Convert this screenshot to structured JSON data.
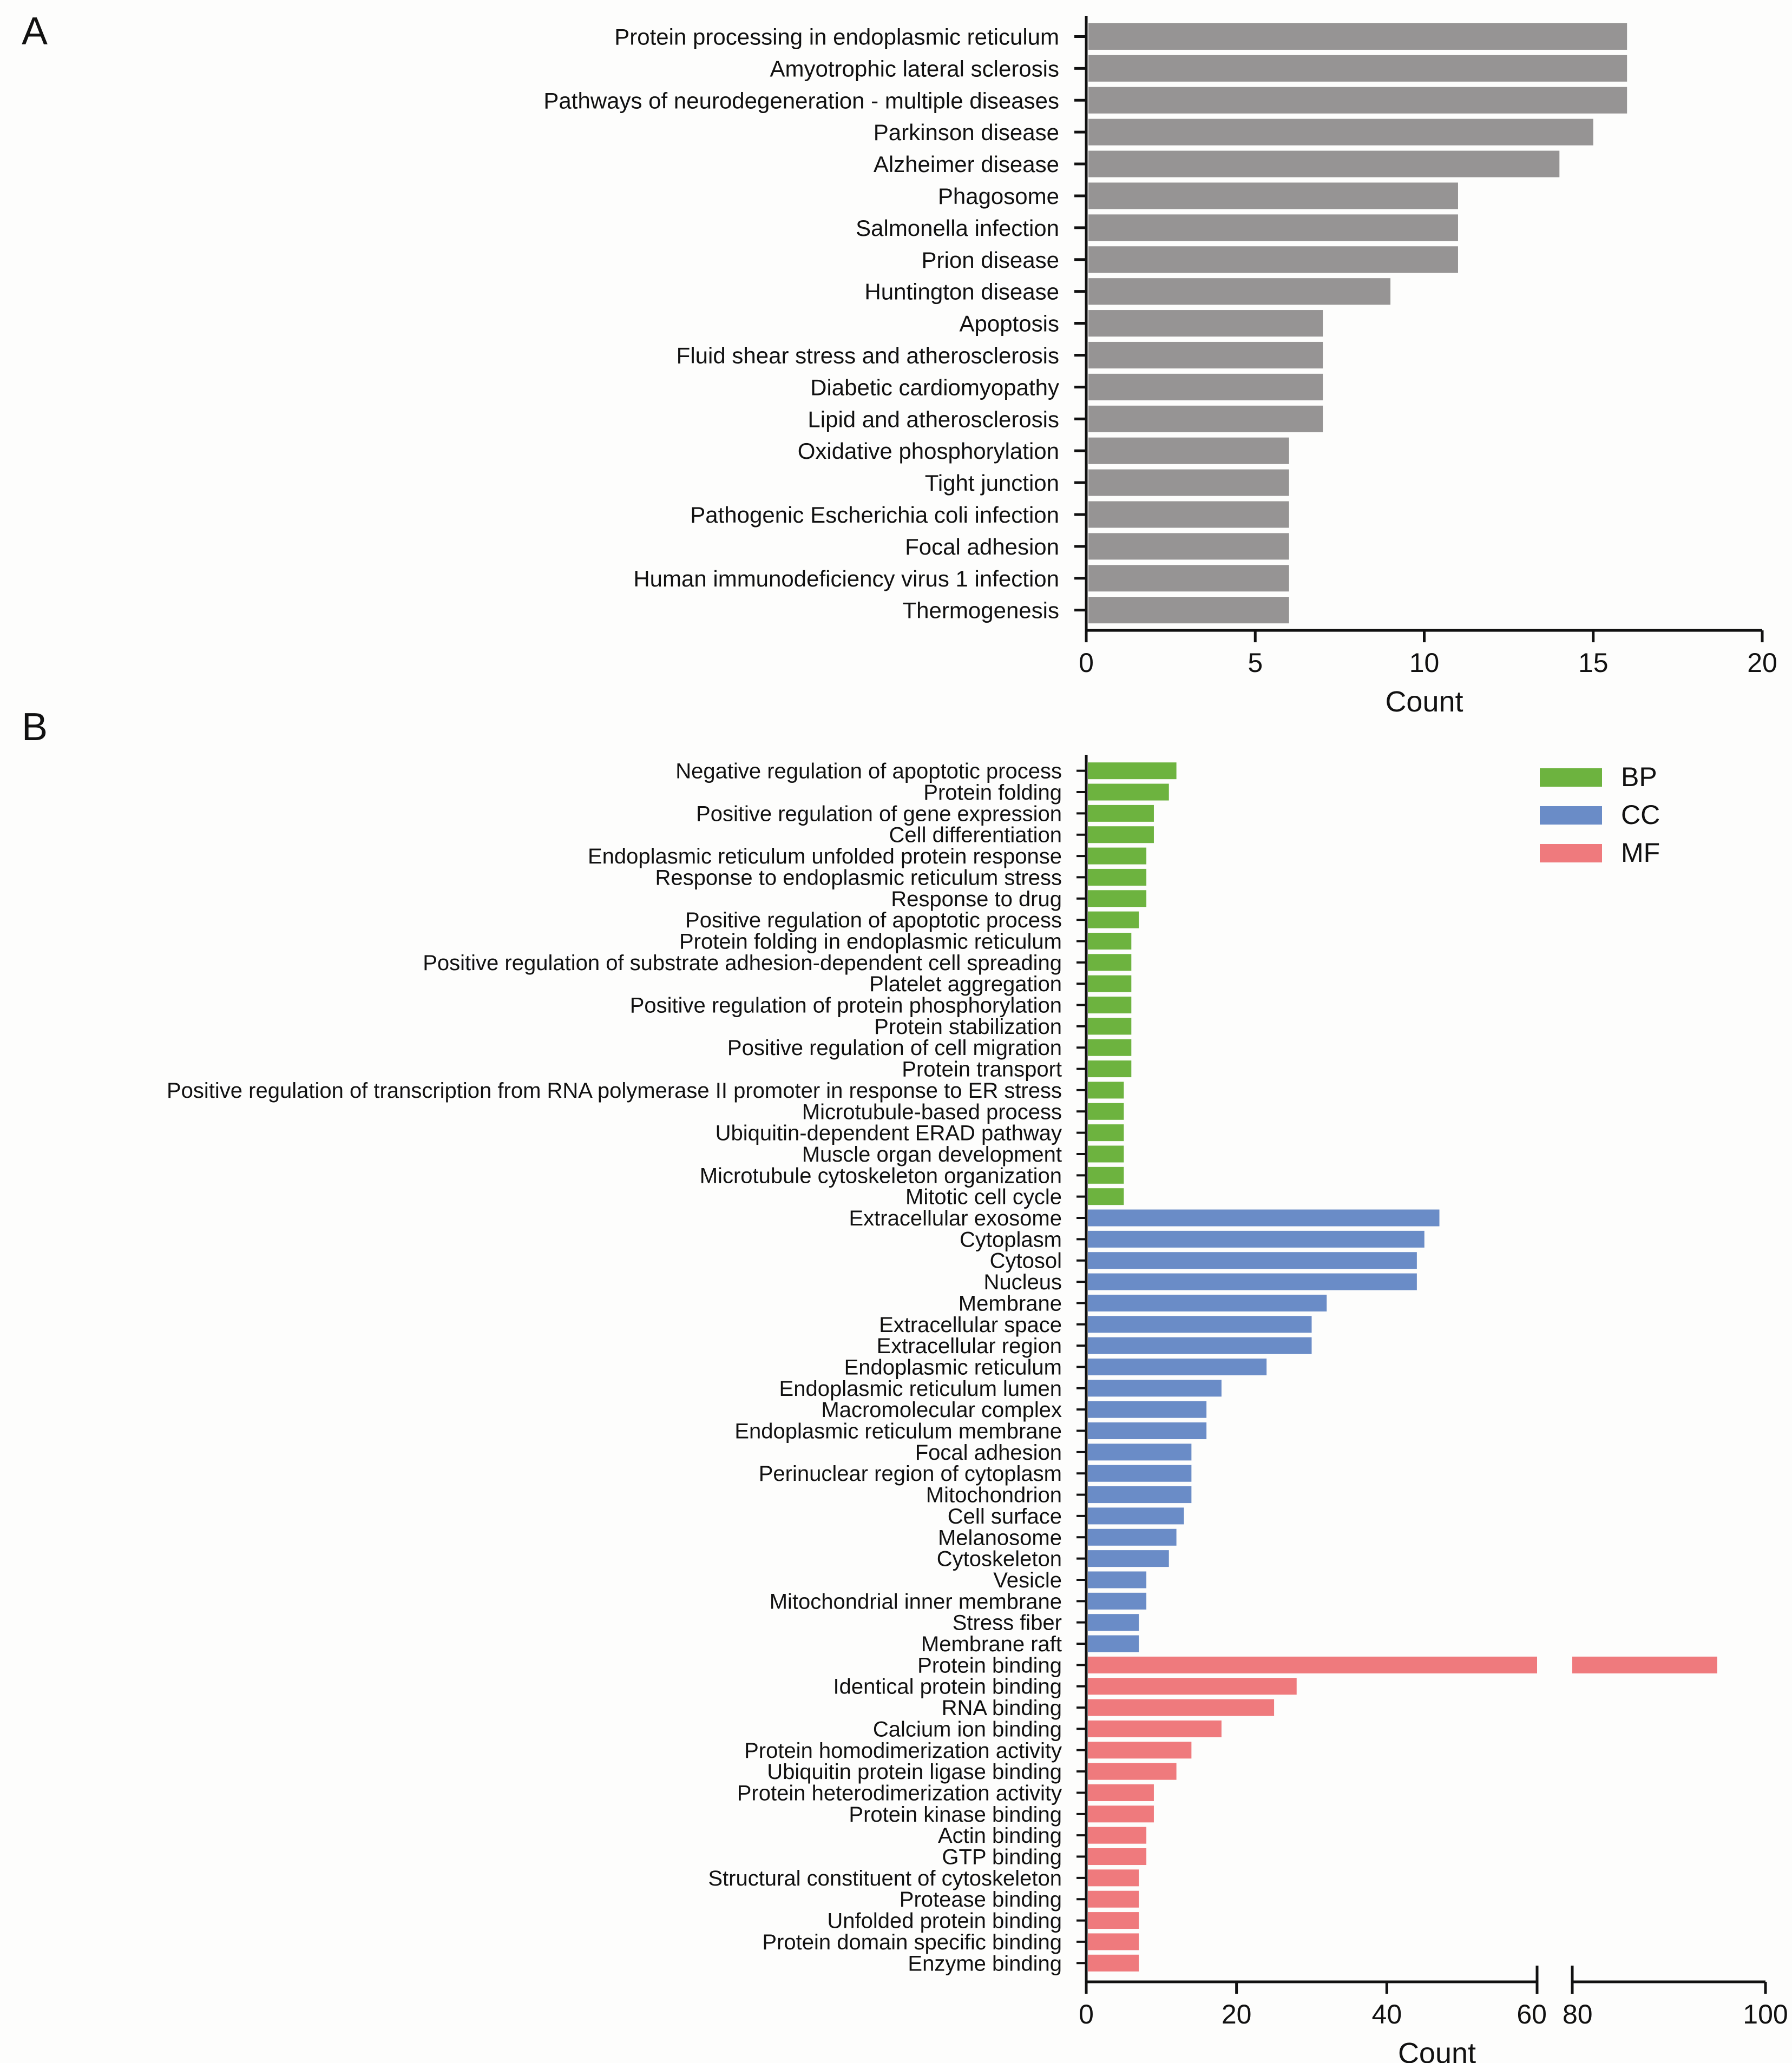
{
  "colors": {
    "bar_a": "#969494",
    "bp": "#6db33f",
    "cc": "#6a8cc7",
    "mf": "#ef7a7d",
    "axis": "#111111"
  },
  "chart_data": [
    {
      "panel": "A",
      "type": "bar",
      "orientation": "horizontal",
      "xlabel": "Count",
      "xlim": [
        0,
        20
      ],
      "xticks": [
        0,
        5,
        10,
        15,
        20
      ],
      "categories": [
        "Protein processing in endoplasmic reticulum",
        "Amyotrophic lateral sclerosis",
        "Pathways of neurodegeneration - multiple diseases",
        "Parkinson disease",
        "Alzheimer disease",
        "Phagosome",
        "Salmonella infection",
        "Prion disease",
        "Huntington disease",
        "Apoptosis",
        "Fluid shear stress and atherosclerosis",
        "Diabetic cardiomyopathy",
        "Lipid and atherosclerosis",
        "Oxidative phosphorylation",
        "Tight junction",
        "Pathogenic Escherichia coli infection",
        "Focal adhesion",
        "Human immunodeficiency virus 1 infection",
        "Thermogenesis"
      ],
      "values": [
        16,
        16,
        16,
        15,
        14,
        11,
        11,
        11,
        9,
        7,
        7,
        7,
        7,
        6,
        6,
        6,
        6,
        6,
        6
      ]
    },
    {
      "panel": "B",
      "type": "bar",
      "orientation": "horizontal",
      "xlabel": "Count",
      "xlim": [
        0,
        100
      ],
      "axis_break": [
        60,
        80
      ],
      "xticks": [
        0,
        20,
        40,
        60,
        80,
        100
      ],
      "legend": [
        "BP",
        "CC",
        "MF"
      ],
      "legend_position": "top-right",
      "series": [
        {
          "name": "BP",
          "categories": [
            "Negative regulation of apoptotic process",
            "Protein folding",
            "Positive regulation of gene expression",
            "Cell differentiation",
            "Endoplasmic reticulum unfolded protein response",
            "Response to endoplasmic reticulum stress",
            "Response to drug",
            "Positive regulation of apoptotic process",
            "Protein folding in endoplasmic reticulum",
            "Positive regulation of substrate adhesion-dependent cell spreading",
            "Platelet aggregation",
            "Positive regulation of protein phosphorylation",
            "Protein stabilization",
            "Positive regulation of cell migration",
            "Protein transport",
            "Positive regulation of transcription from RNA polymerase II promoter in response to ER stress",
            "Microtubule-based process",
            "Ubiquitin-dependent ERAD pathway",
            "Muscle organ development",
            "Microtubule cytoskeleton organization",
            "Mitotic cell cycle"
          ],
          "values": [
            12,
            11,
            9,
            9,
            8,
            8,
            8,
            7,
            6,
            6,
            6,
            6,
            6,
            6,
            6,
            5,
            5,
            5,
            5,
            5,
            5
          ]
        },
        {
          "name": "CC",
          "categories": [
            "Extracellular exosome",
            "Cytoplasm",
            "Cytosol",
            "Nucleus",
            "Membrane",
            "Extracellular space",
            "Extracellular region",
            "Endoplasmic reticulum",
            "Endoplasmic reticulum lumen",
            "Macromolecular complex",
            "Endoplasmic reticulum membrane",
            "Focal adhesion",
            "Perinuclear region of cytoplasm",
            "Mitochondrion",
            "Cell surface",
            "Melanosome",
            "Cytoskeleton",
            "Vesicle",
            "Mitochondrial inner membrane",
            "Stress fiber",
            "Membrane raft"
          ],
          "values": [
            47,
            45,
            44,
            44,
            32,
            30,
            30,
            24,
            18,
            16,
            16,
            14,
            14,
            14,
            13,
            12,
            11,
            8,
            8,
            7,
            7
          ]
        },
        {
          "name": "MF",
          "categories": [
            "Protein binding",
            "Identical protein binding",
            "RNA binding",
            "Calcium ion binding",
            "Protein homodimerization activity",
            "Ubiquitin protein ligase binding",
            "Protein heterodimerization activity",
            "Protein kinase binding",
            "Actin binding",
            "GTP binding",
            "Structural constituent of cytoskeleton",
            "Protease binding",
            "Unfolded protein binding",
            "Protein domain specific binding",
            "Enzyme binding"
          ],
          "values": [
            95,
            28,
            25,
            18,
            14,
            12,
            9,
            9,
            8,
            8,
            7,
            7,
            7,
            7,
            7
          ]
        }
      ]
    }
  ],
  "panel_labels": [
    "A",
    "B"
  ]
}
